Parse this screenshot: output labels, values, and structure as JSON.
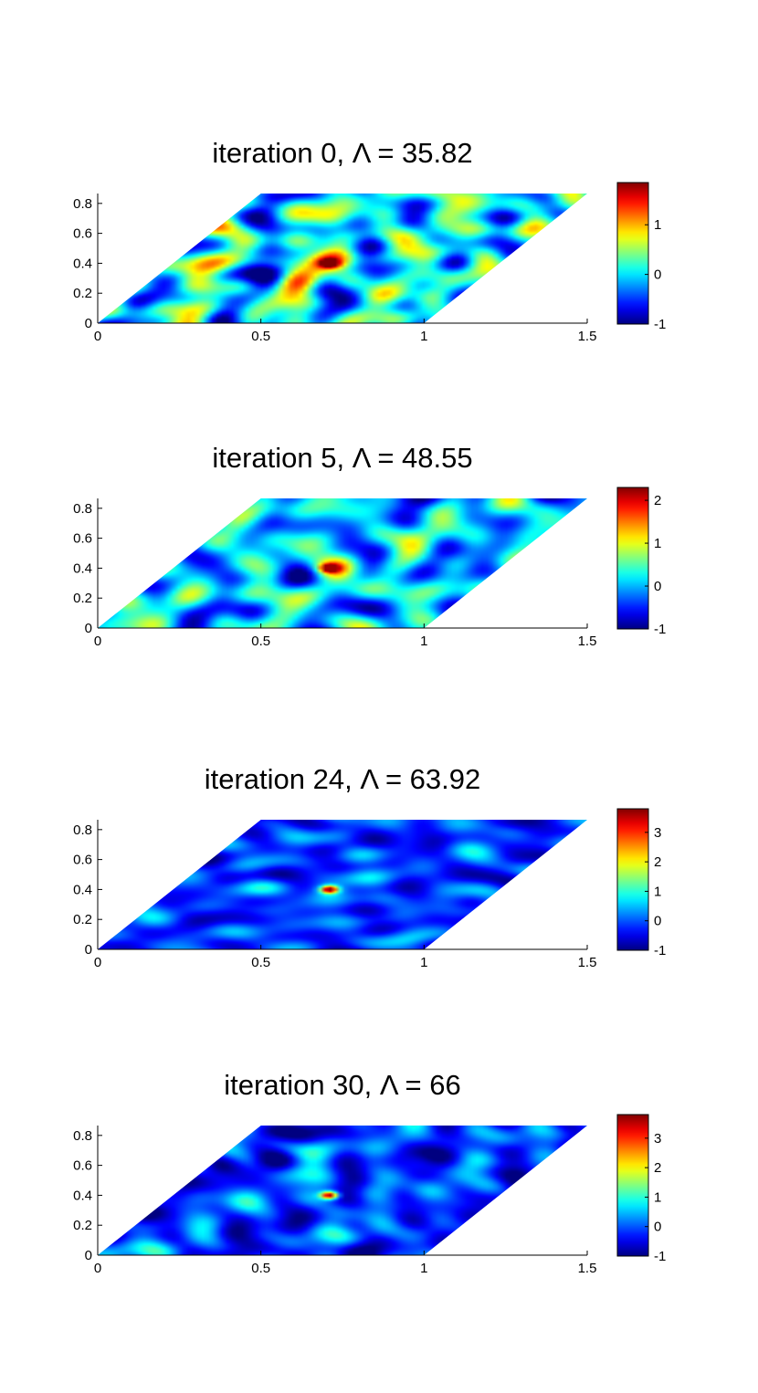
{
  "figure": {
    "colormap": "jet",
    "background": "#ffffff"
  },
  "chart_data": [
    {
      "type": "heatmap",
      "title": "iteration 0,  Λ = 35.82",
      "domain": "parallelogram",
      "xticks": [
        "0",
        "0.5",
        "1",
        "1.5"
      ],
      "yticks": [
        "0",
        "0.2",
        "0.4",
        "0.6",
        "0.8"
      ],
      "xlim": [
        0,
        1.5
      ],
      "ylim": [
        0,
        0.866
      ],
      "clim": [
        -1,
        1.85
      ],
      "colorbar_ticks": [
        "1",
        "0",
        "-1"
      ],
      "peak": {
        "x": 0.71,
        "y": 0.4,
        "value": 1.85
      },
      "field_mean": 0.05,
      "field_noise": 0.55
    },
    {
      "type": "heatmap",
      "title": "iteration 5,  Λ = 48.55",
      "domain": "parallelogram",
      "xticks": [
        "0",
        "0.5",
        "1",
        "1.5"
      ],
      "yticks": [
        "0",
        "0.2",
        "0.4",
        "0.6",
        "0.8"
      ],
      "xlim": [
        0,
        1.5
      ],
      "ylim": [
        0,
        0.866
      ],
      "clim": [
        -1,
        2.3
      ],
      "colorbar_ticks": [
        "2",
        "1",
        "0",
        "-1"
      ],
      "peak": {
        "x": 0.71,
        "y": 0.4,
        "value": 2.2
      },
      "field_mean": 0.05,
      "field_noise": 0.6
    },
    {
      "type": "heatmap",
      "title": "iteration 24,  Λ = 63.92",
      "domain": "parallelogram",
      "xticks": [
        "0",
        "0.5",
        "1",
        "1.5"
      ],
      "yticks": [
        "0",
        "0.2",
        "0.4",
        "0.6",
        "0.8"
      ],
      "xlim": [
        0,
        1.5
      ],
      "ylim": [
        0,
        0.866
      ],
      "clim": [
        -1,
        3.8
      ],
      "colorbar_ticks": [
        "3",
        "2",
        "1",
        "0",
        "-1"
      ],
      "peak": {
        "x": 0.71,
        "y": 0.4,
        "value": 3.7
      },
      "field_mean": -0.15,
      "field_noise": 0.5
    },
    {
      "type": "heatmap",
      "title": "iteration 30,  Λ = 66",
      "domain": "parallelogram",
      "xticks": [
        "0",
        "0.5",
        "1",
        "1.5"
      ],
      "yticks": [
        "0",
        "0.2",
        "0.4",
        "0.6",
        "0.8"
      ],
      "xlim": [
        0,
        1.5
      ],
      "ylim": [
        0,
        0.866
      ],
      "clim": [
        -1,
        3.8
      ],
      "colorbar_ticks": [
        "3",
        "2",
        "1",
        "0",
        "-1"
      ],
      "peak": {
        "x": 0.71,
        "y": 0.4,
        "value": 3.7
      },
      "field_mean": -0.15,
      "field_noise": 0.5
    }
  ]
}
